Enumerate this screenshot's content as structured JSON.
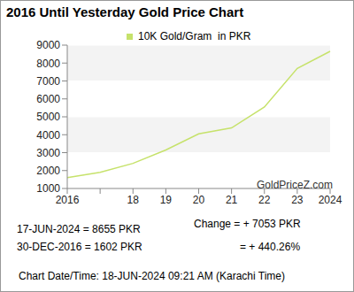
{
  "chart_data": {
    "type": "line",
    "title": "2016 Until Yesterday Gold Price Chart",
    "categories": [
      "2016",
      null,
      "18",
      "19",
      "20",
      "21",
      "22",
      "23",
      "2024"
    ],
    "series": [
      {
        "name": "10K Gold/Gram  in PKR",
        "color": "#c6e26b",
        "values": [
          1602,
          1900,
          2400,
          3150,
          4050,
          4380,
          5550,
          7700,
          8655
        ]
      }
    ],
    "ylim": [
      1000,
      9000
    ],
    "yticks": [
      1000,
      2000,
      3000,
      4000,
      5000,
      6000,
      7000,
      8000,
      9000
    ],
    "grid": true,
    "legend": "top",
    "watermark": "GoldPriceZ.com",
    "annotations": [
      "17-JUN-2024 = 8655 PKR",
      "Change = + 7053 PKR",
      "30-DEC-2016 = 1602 PKR",
      "= + 440.26%",
      "Chart Date/Time: 18-JUN-2024 09:21 AM (Karachi Time)"
    ]
  }
}
